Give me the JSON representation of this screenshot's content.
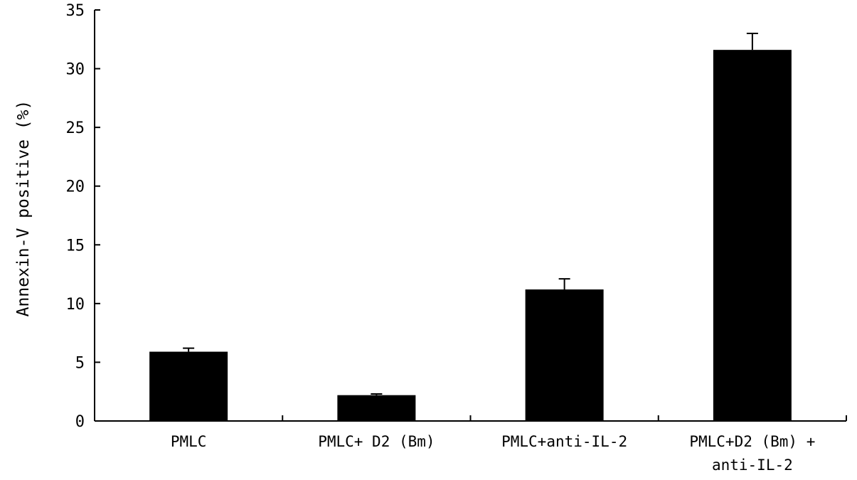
{
  "chart_data": {
    "type": "bar",
    "title": "",
    "xlabel": "",
    "ylabel": "Annexin-V positive (%)",
    "ylim": [
      0,
      35
    ],
    "yticks": [
      "0",
      "5",
      "10",
      "15",
      "20",
      "25",
      "30",
      "35"
    ],
    "grid": false,
    "legend": "none",
    "categories": [
      [
        "PMLC"
      ],
      [
        "PMLC+ D2 (Bm)"
      ],
      [
        "PMLC+anti-IL-2"
      ],
      [
        "PMLC+D2 (Bm) +",
        "anti-IL-2"
      ]
    ],
    "values": [
      5.9,
      2.2,
      11.2,
      31.6
    ],
    "errors": [
      0.3,
      0.1,
      0.9,
      1.4
    ],
    "bar_color": "#000000"
  }
}
